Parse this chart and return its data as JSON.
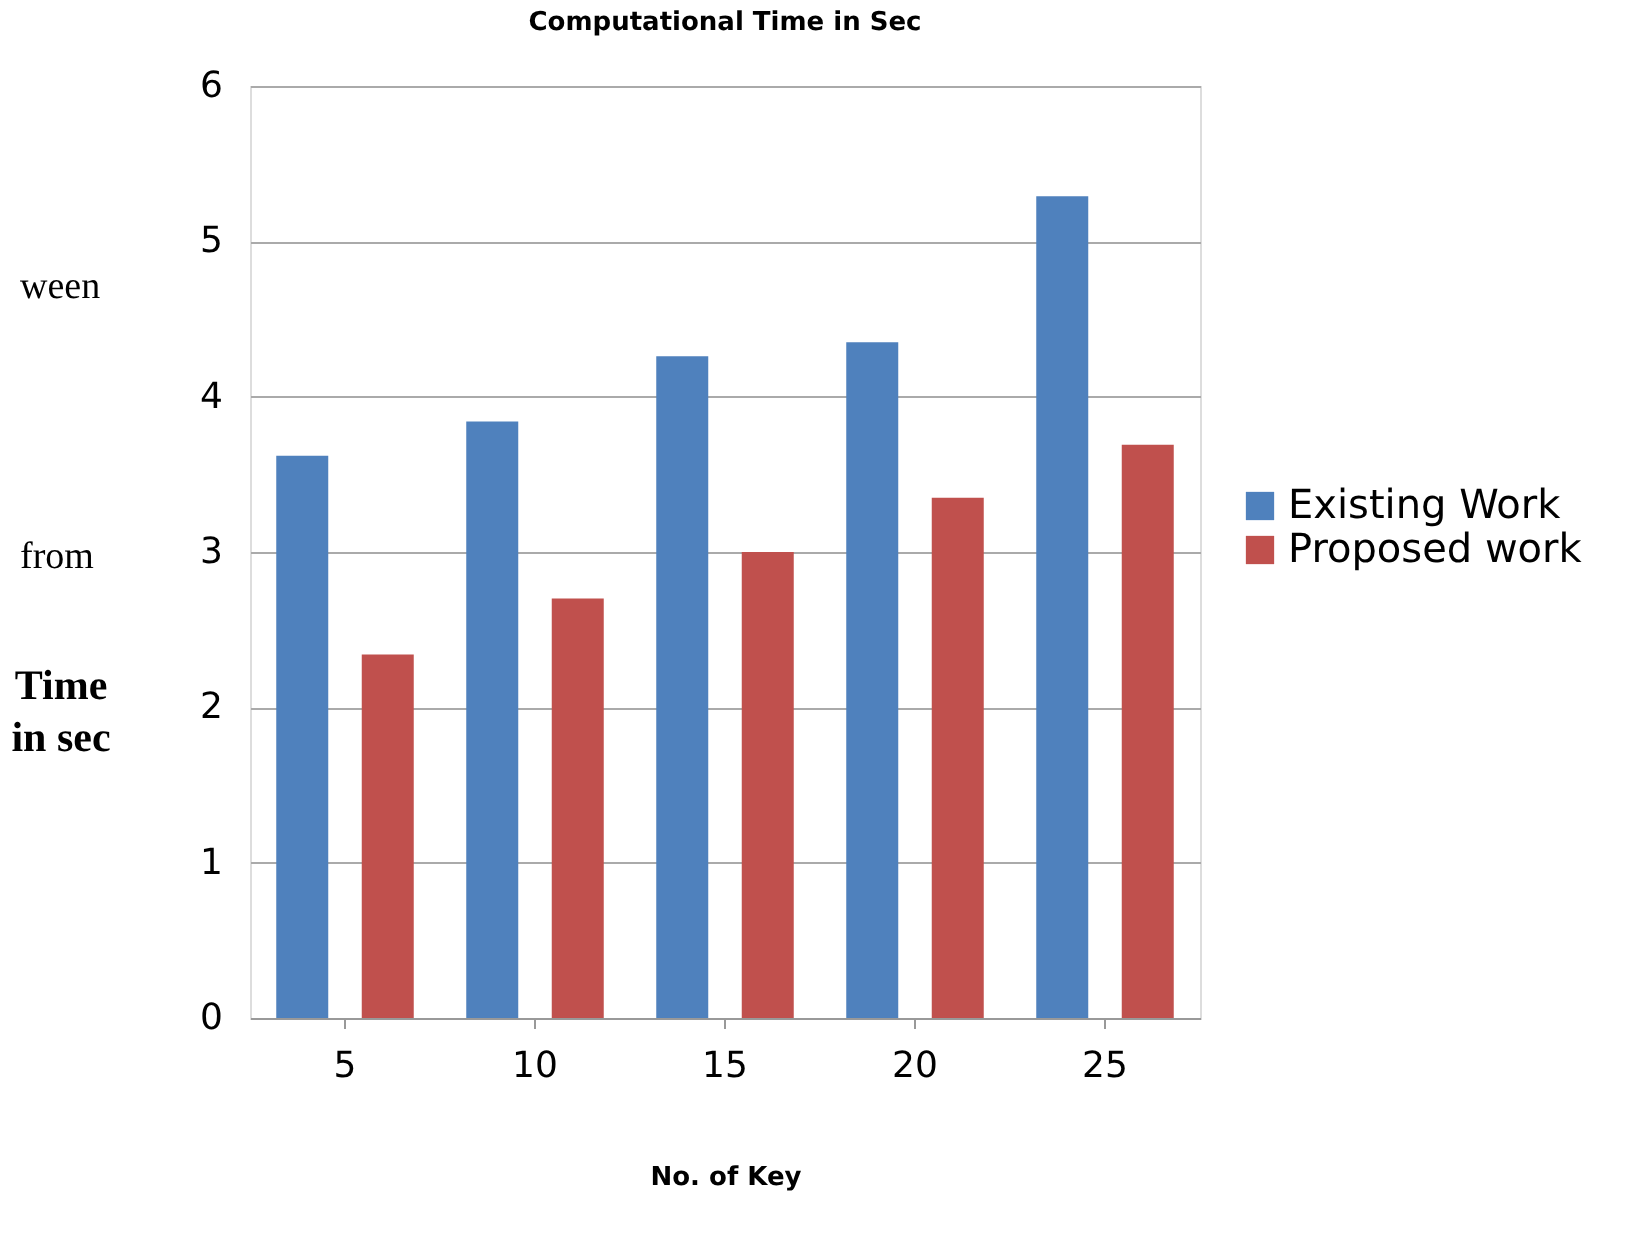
{
  "chart_data": {
    "type": "bar",
    "title": "Computational Time in Sec",
    "xlabel": "No. of Key",
    "ylabel": "Time in sec",
    "categories": [
      "5",
      "10",
      "15",
      "20",
      "25"
    ],
    "series": [
      {
        "name": "Existing Work",
        "color": "#4f81bd",
        "values": [
          3.62,
          3.84,
          4.26,
          4.35,
          5.29
        ]
      },
      {
        "name": "Proposed work",
        "color": "#c0504d",
        "values": [
          2.34,
          2.7,
          3.0,
          3.35,
          3.69
        ]
      }
    ],
    "ylim": [
      0,
      6
    ],
    "yticks": [
      0,
      1,
      2,
      3,
      4,
      5,
      6
    ],
    "grid": "y",
    "legend": "right",
    "annotations": [
      "ween",
      "from"
    ]
  }
}
